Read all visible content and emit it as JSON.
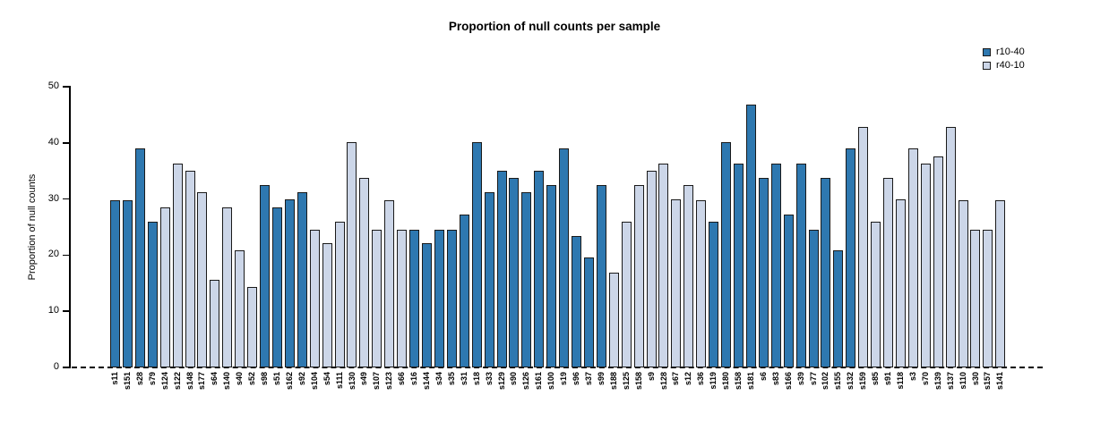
{
  "title": "Proportion of null counts per sample",
  "ylabel": "Proportion of null counts",
  "legend": [
    {
      "label": "r10-40",
      "color": "#2e78b0"
    },
    {
      "label": "r40-10",
      "color": "#ccd6e8"
    }
  ],
  "chart_data": {
    "type": "bar",
    "title": "Proportion of null counts per sample",
    "xlabel": "",
    "ylabel": "Proportion of null counts",
    "ylim": [
      0,
      50
    ],
    "yticks": [
      0,
      10,
      20,
      30,
      40,
      50
    ],
    "grid": false,
    "legend_position": "top-right",
    "series_colors": {
      "r10-40": "#2e78b0",
      "r40-10": "#ccd6e8"
    },
    "bars": [
      {
        "sample": "s11",
        "value": 29.8,
        "series": "r10-40"
      },
      {
        "sample": "s151",
        "value": 29.8,
        "series": "r10-40"
      },
      {
        "sample": "s28",
        "value": 39.0,
        "series": "r10-40"
      },
      {
        "sample": "s79",
        "value": 26.0,
        "series": "r10-40"
      },
      {
        "sample": "s124",
        "value": 28.5,
        "series": "r40-10"
      },
      {
        "sample": "s122",
        "value": 36.3,
        "series": "r40-10"
      },
      {
        "sample": "s148",
        "value": 35.0,
        "series": "r40-10"
      },
      {
        "sample": "s177",
        "value": 31.2,
        "series": "r40-10"
      },
      {
        "sample": "s64",
        "value": 15.6,
        "series": "r40-10"
      },
      {
        "sample": "s140",
        "value": 28.5,
        "series": "r40-10"
      },
      {
        "sample": "s40",
        "value": 20.9,
        "series": "r40-10"
      },
      {
        "sample": "s52",
        "value": 14.3,
        "series": "r40-10"
      },
      {
        "sample": "s98",
        "value": 32.5,
        "series": "r10-40"
      },
      {
        "sample": "s51",
        "value": 28.5,
        "series": "r10-40"
      },
      {
        "sample": "s162",
        "value": 29.9,
        "series": "r10-40"
      },
      {
        "sample": "s92",
        "value": 31.2,
        "series": "r10-40"
      },
      {
        "sample": "s104",
        "value": 24.5,
        "series": "r40-10"
      },
      {
        "sample": "s54",
        "value": 22.1,
        "series": "r40-10"
      },
      {
        "sample": "s111",
        "value": 26.0,
        "series": "r40-10"
      },
      {
        "sample": "s130",
        "value": 40.1,
        "series": "r40-10"
      },
      {
        "sample": "s49",
        "value": 33.8,
        "series": "r40-10"
      },
      {
        "sample": "s107",
        "value": 24.5,
        "series": "r40-10"
      },
      {
        "sample": "s123",
        "value": 29.8,
        "series": "r40-10"
      },
      {
        "sample": "s66",
        "value": 24.5,
        "series": "r40-10"
      },
      {
        "sample": "s16",
        "value": 24.5,
        "series": "r10-40"
      },
      {
        "sample": "s144",
        "value": 22.1,
        "series": "r10-40"
      },
      {
        "sample": "s34",
        "value": 24.5,
        "series": "r10-40"
      },
      {
        "sample": "s35",
        "value": 24.5,
        "series": "r10-40"
      },
      {
        "sample": "s31",
        "value": 27.2,
        "series": "r10-40"
      },
      {
        "sample": "s18",
        "value": 40.1,
        "series": "r10-40"
      },
      {
        "sample": "s33",
        "value": 31.2,
        "series": "r10-40"
      },
      {
        "sample": "s129",
        "value": 35.0,
        "series": "r10-40"
      },
      {
        "sample": "s90",
        "value": 33.8,
        "series": "r10-40"
      },
      {
        "sample": "s126",
        "value": 31.2,
        "series": "r10-40"
      },
      {
        "sample": "s161",
        "value": 35.0,
        "series": "r10-40"
      },
      {
        "sample": "s100",
        "value": 32.5,
        "series": "r10-40"
      },
      {
        "sample": "s19",
        "value": 39.0,
        "series": "r10-40"
      },
      {
        "sample": "s96",
        "value": 23.4,
        "series": "r10-40"
      },
      {
        "sample": "s37",
        "value": 19.6,
        "series": "r10-40"
      },
      {
        "sample": "s99",
        "value": 32.5,
        "series": "r10-40"
      },
      {
        "sample": "s188",
        "value": 16.9,
        "series": "r40-10"
      },
      {
        "sample": "s125",
        "value": 26.0,
        "series": "r40-10"
      },
      {
        "sample": "s158",
        "value": 32.5,
        "series": "r40-10"
      },
      {
        "sample": "s9",
        "value": 35.0,
        "series": "r40-10"
      },
      {
        "sample": "s128",
        "value": 36.3,
        "series": "r40-10"
      },
      {
        "sample": "s67",
        "value": 29.9,
        "series": "r40-10"
      },
      {
        "sample": "s12",
        "value": 32.5,
        "series": "r40-10"
      },
      {
        "sample": "s36",
        "value": 29.8,
        "series": "r40-10"
      },
      {
        "sample": "s119",
        "value": 26.0,
        "series": "r10-40"
      },
      {
        "sample": "s180",
        "value": 40.1,
        "series": "r10-40"
      },
      {
        "sample": "s158",
        "value": 36.3,
        "series": "r10-40"
      },
      {
        "sample": "s181",
        "value": 46.8,
        "series": "r10-40"
      },
      {
        "sample": "s6",
        "value": 33.8,
        "series": "r10-40"
      },
      {
        "sample": "s83",
        "value": 36.3,
        "series": "r10-40"
      },
      {
        "sample": "s166",
        "value": 27.2,
        "series": "r10-40"
      },
      {
        "sample": "s39",
        "value": 36.3,
        "series": "r10-40"
      },
      {
        "sample": "s77",
        "value": 24.5,
        "series": "r10-40"
      },
      {
        "sample": "s102",
        "value": 33.8,
        "series": "r10-40"
      },
      {
        "sample": "s155",
        "value": 20.9,
        "series": "r10-40"
      },
      {
        "sample": "s132",
        "value": 39.0,
        "series": "r10-40"
      },
      {
        "sample": "s159",
        "value": 42.8,
        "series": "r40-10"
      },
      {
        "sample": "s85",
        "value": 26.0,
        "series": "r40-10"
      },
      {
        "sample": "s91",
        "value": 33.8,
        "series": "r40-10"
      },
      {
        "sample": "s118",
        "value": 29.9,
        "series": "r40-10"
      },
      {
        "sample": "s3",
        "value": 39.0,
        "series": "r40-10"
      },
      {
        "sample": "s70",
        "value": 36.3,
        "series": "r40-10"
      },
      {
        "sample": "s139",
        "value": 37.6,
        "series": "r40-10"
      },
      {
        "sample": "s137",
        "value": 42.8,
        "series": "r40-10"
      },
      {
        "sample": "s110",
        "value": 29.8,
        "series": "r40-10"
      },
      {
        "sample": "s30",
        "value": 24.5,
        "series": "r40-10"
      },
      {
        "sample": "s157",
        "value": 24.5,
        "series": "r40-10"
      },
      {
        "sample": "s141",
        "value": 29.8,
        "series": "r40-10"
      }
    ]
  }
}
